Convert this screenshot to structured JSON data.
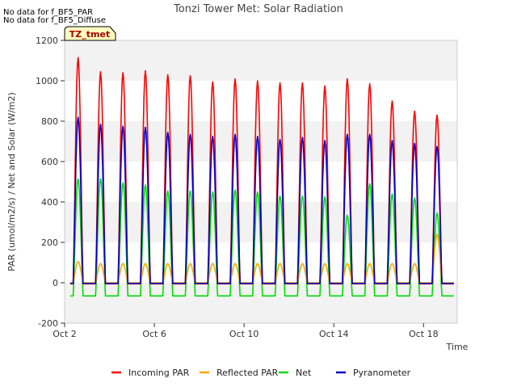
{
  "no_data_notes": [
    "No data for f_BF5_PAR",
    "No data for f_BF5_Diffuse"
  ],
  "badge": "TZ_tmet",
  "chart_data": {
    "type": "line",
    "title": "Tonzi Tower Met: Solar Radiation",
    "xlabel": "Time",
    "ylabel": "PAR (umol/m2/s) / Net and Solar (W/m2)",
    "ylim": [
      -200,
      1200
    ],
    "yticks": [
      -200,
      0,
      200,
      400,
      600,
      800,
      1000,
      1200
    ],
    "xlim": [
      "Oct 2",
      "Oct 19.5"
    ],
    "xticks": [
      {
        "label": "Oct 2",
        "day": 2
      },
      {
        "label": "Oct 6",
        "day": 6
      },
      {
        "label": "Oct 10",
        "day": 10
      },
      {
        "label": "Oct 14",
        "day": 14
      },
      {
        "label": "Oct 18",
        "day": 18
      }
    ],
    "grid": "horizontal bands",
    "legend_position": "bottom",
    "day_start": 2.25,
    "day_end": 19.35,
    "peak_days": [
      2.6,
      3.6,
      4.6,
      5.6,
      6.6,
      7.6,
      8.6,
      9.6,
      10.6,
      11.6,
      12.6,
      13.6,
      14.6,
      15.6,
      16.6,
      17.6,
      18.6
    ],
    "series": [
      {
        "name": "Incoming PAR",
        "color": "#ff0000",
        "night": -5,
        "peaks": [
          1115,
          1045,
          1040,
          1050,
          1030,
          1025,
          995,
          1010,
          1000,
          990,
          990,
          975,
          1010,
          985,
          900,
          850,
          830
        ]
      },
      {
        "name": "Reflected PAR",
        "color": "#ffa500",
        "night": 0,
        "peaks": [
          105,
          95,
          95,
          95,
          95,
          95,
          95,
          95,
          95,
          95,
          95,
          95,
          95,
          95,
          95,
          95,
          240
        ]
      },
      {
        "name": "Net",
        "color": "#00dd00",
        "night": -65,
        "peaks": [
          515,
          515,
          495,
          485,
          455,
          455,
          450,
          460,
          450,
          430,
          430,
          425,
          335,
          490,
          440,
          420,
          345
        ]
      },
      {
        "name": "Pyranometer",
        "color": "#0000cc",
        "night": -3,
        "peaks": [
          820,
          785,
          775,
          770,
          745,
          735,
          725,
          735,
          725,
          710,
          720,
          705,
          735,
          735,
          705,
          690,
          675
        ]
      }
    ]
  }
}
